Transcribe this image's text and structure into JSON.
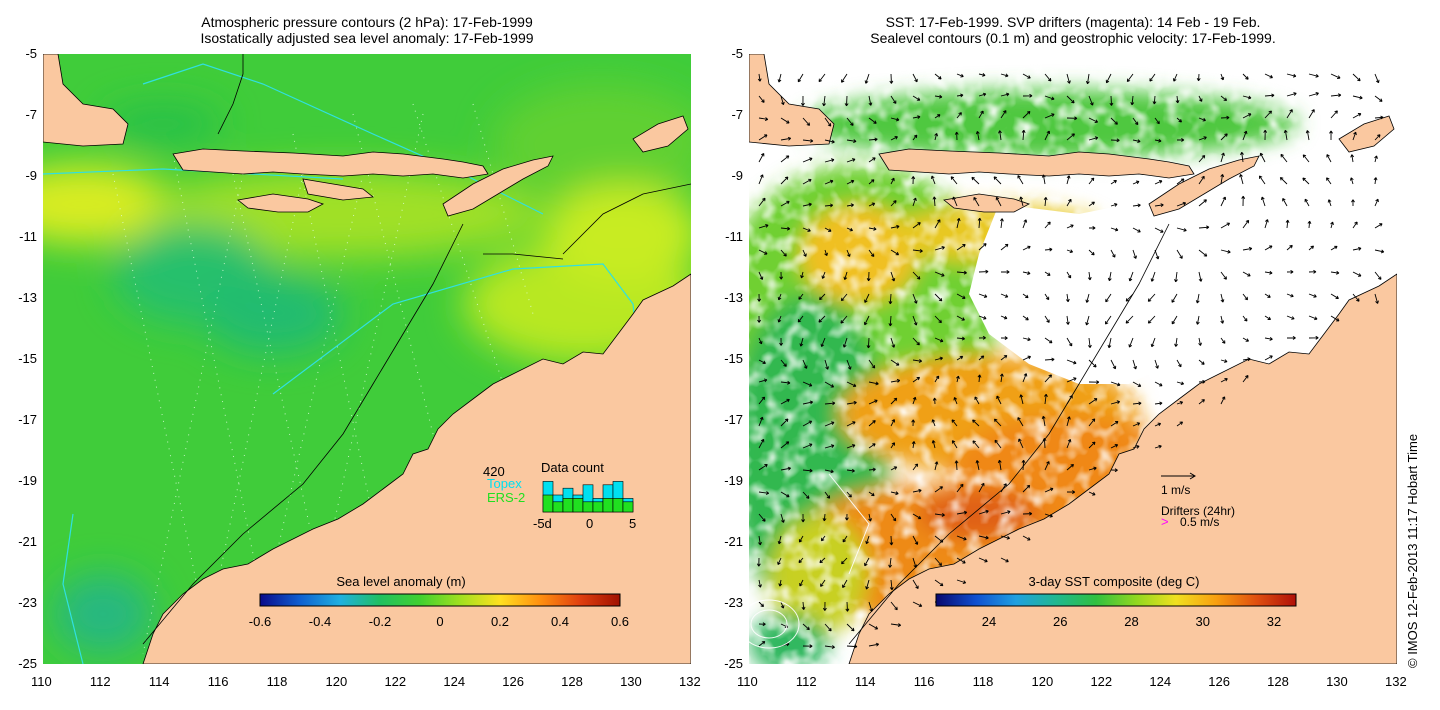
{
  "left_panel": {
    "title_line1": "Atmospheric pressure contours (2 hPa): 17-Feb-1999",
    "title_line2": "Isostatically adjusted sea level anomaly: 17-Feb-1999",
    "colorbar": {
      "title": "Sea level anomaly (m)",
      "ticks": [
        "-0.6",
        "-0.4",
        "-0.2",
        "0",
        "0.2",
        "0.4",
        "0.6"
      ],
      "colors": [
        "#0a0a8a",
        "#1060d0",
        "#20b0e0",
        "#20c060",
        "#40d030",
        "#a0e020",
        "#ffe020",
        "#ff9010",
        "#e04010",
        "#a01000"
      ]
    },
    "data_count": {
      "total": "420",
      "topex_label": "Topex",
      "ers_label": "ERS-2",
      "title": "Data count",
      "axis_ticks": [
        "-5d",
        "0",
        "5"
      ],
      "topex_color": "#00e0f0",
      "ers_color": "#20e020"
    }
  },
  "right_panel": {
    "title_line1": "SST: 17-Feb-1999. SVP drifters (magenta): 14 Feb - 19 Feb.",
    "title_line2": "Sealevel contours (0.1 m) and geostrophic velocity: 17-Feb-1999.",
    "colorbar": {
      "title": "3-day SST composite (deg C)",
      "ticks": [
        "24",
        "26",
        "28",
        "30",
        "32"
      ],
      "colors": [
        "#08086e",
        "#1050d0",
        "#20a0e0",
        "#20b890",
        "#30c040",
        "#90d820",
        "#f0e020",
        "#f8a010",
        "#e05010",
        "#b01008"
      ]
    },
    "legend": {
      "velocity_label": "1 m/s",
      "drifters_label": "Drifters (24hr)",
      "drifter_speed_label": "0.5 m/s",
      "drifter_color": "#ff00ff"
    }
  },
  "axes": {
    "x_ticks": [
      "110",
      "112",
      "114",
      "116",
      "118",
      "120",
      "122",
      "124",
      "126",
      "128",
      "130",
      "132"
    ],
    "y_ticks": [
      "-5",
      "-7",
      "-9",
      "-11",
      "-13",
      "-15",
      "-17",
      "-19",
      "-21",
      "-23",
      "-25"
    ]
  },
  "colors": {
    "land": "#fac8a0",
    "ocean_green": "#3cc838",
    "no_data": "#ffffff"
  },
  "copyright": "© IMOS 12-Feb-2013 11:17 Hobart Time"
}
